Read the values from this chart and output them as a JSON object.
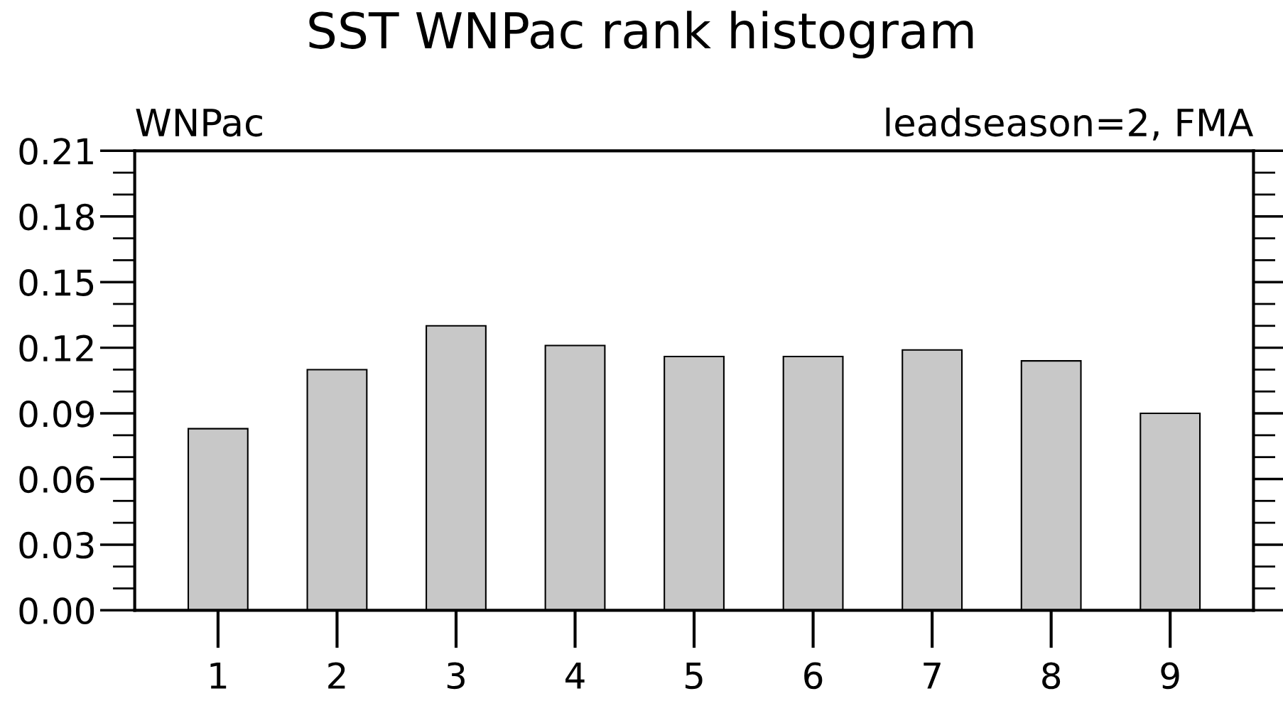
{
  "chart_data": {
    "type": "bar",
    "title": "SST WNPac rank histogram",
    "annotations": [
      "WNPac",
      "leadseason=2, FMA"
    ],
    "categories": [
      "1",
      "2",
      "3",
      "4",
      "5",
      "6",
      "7",
      "8",
      "9"
    ],
    "values": [
      0.083,
      0.11,
      0.13,
      0.121,
      0.116,
      0.116,
      0.119,
      0.114,
      0.09
    ],
    "color": "#c8c8c8",
    "ylim": [
      0,
      0.21
    ],
    "yticks": [
      {
        "value": 0,
        "label": "0.00"
      },
      {
        "value": 0.03,
        "label": "0.03"
      },
      {
        "value": 0.06,
        "label": "0.06"
      },
      {
        "value": 0.09,
        "label": "0.09"
      },
      {
        "value": 0.12,
        "label": "0.12"
      },
      {
        "value": 0.15,
        "label": "0.15"
      },
      {
        "value": 0.18,
        "label": "0.18"
      },
      {
        "value": 0.21,
        "label": "0.21"
      }
    ],
    "grid": false,
    "legend": false
  }
}
